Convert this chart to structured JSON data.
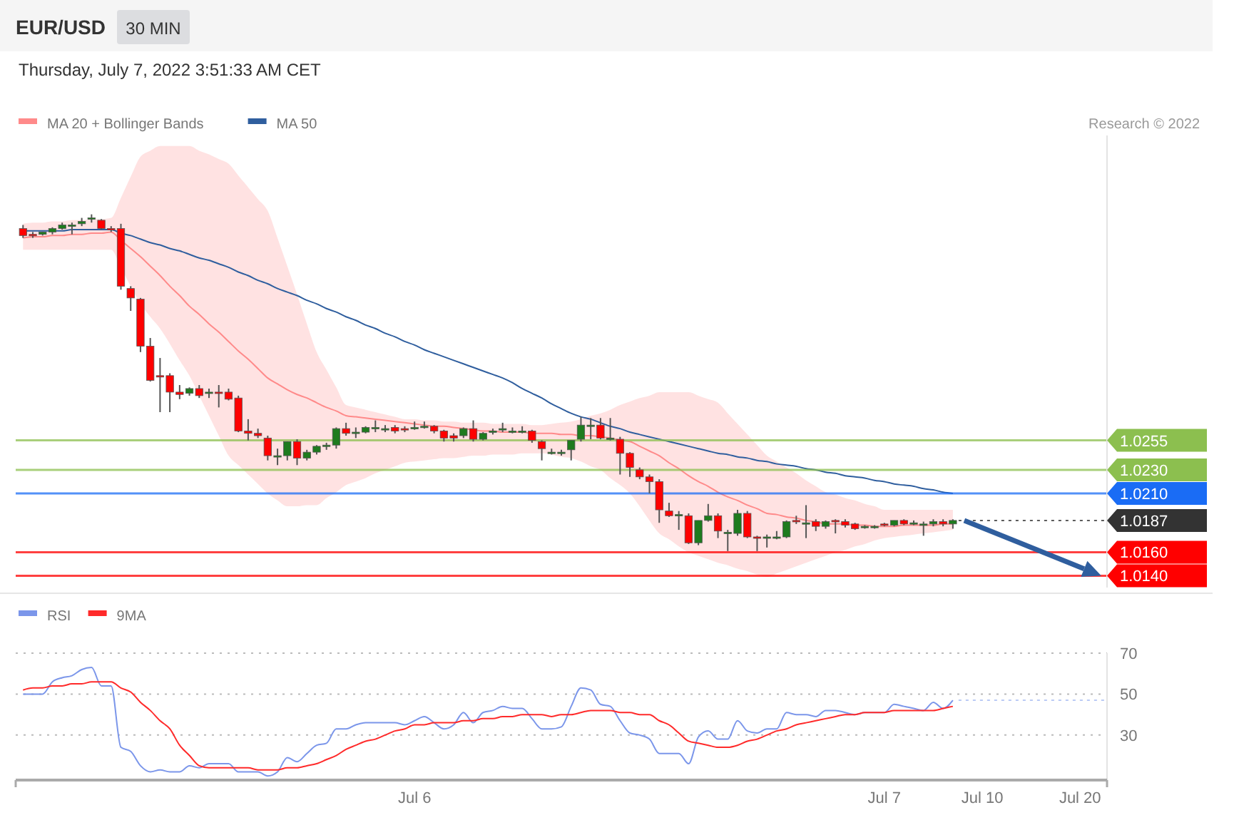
{
  "chart_data": [
    {
      "type": "candlestick",
      "title": "EUR/USD",
      "subtitle": "30 MIN",
      "annotations": [
        "Thursday, July 7, 2022 3:51:33 AM CET",
        "Research © 2022"
      ],
      "categories": [
        null,
        null,
        null,
        null,
        null,
        null,
        null,
        null,
        null,
        null,
        null,
        null,
        null,
        null,
        null,
        null,
        null,
        null,
        null,
        null,
        null,
        null,
        null,
        null,
        null,
        null,
        null,
        null,
        null,
        null,
        null,
        null,
        null,
        null,
        null,
        null,
        null,
        null,
        null,
        null,
        null,
        null,
        null,
        null,
        null,
        null,
        null,
        null,
        null,
        null,
        null,
        null,
        null,
        null,
        null,
        null,
        null,
        null,
        null,
        null,
        null,
        null,
        null,
        null,
        null,
        null,
        null,
        null,
        null,
        null,
        null,
        null,
        null,
        null,
        null,
        null,
        null,
        null,
        null,
        null,
        null,
        null,
        null,
        null,
        null,
        null,
        null,
        null,
        null,
        null,
        null,
        null,
        null,
        null,
        null,
        null,
        null,
        null,
        null,
        null,
        null,
        null,
        null,
        null,
        null,
        null,
        null,
        null,
        null,
        null,
        null
      ],
      "ohlc": [
        [
          1.0435,
          1.0438,
          1.0427,
          1.0429
        ],
        [
          1.043,
          1.0432,
          1.0427,
          1.0429
        ],
        [
          1.043,
          1.0432,
          1.0429,
          1.0432
        ],
        [
          1.0432,
          1.0436,
          1.043,
          1.0435
        ],
        [
          1.0435,
          1.044,
          1.0434,
          1.0438
        ],
        [
          1.0438,
          1.044,
          1.043,
          1.0438
        ],
        [
          1.0439,
          1.0444,
          1.0437,
          1.0441
        ],
        [
          1.0443,
          1.0447,
          1.044,
          1.0444
        ],
        [
          1.0442,
          1.0443,
          1.0434,
          1.0435
        ],
        [
          1.0435,
          1.0437,
          1.0432,
          1.0434
        ],
        [
          1.0435,
          1.0439,
          1.0383,
          1.0386
        ],
        [
          1.0384,
          1.0386,
          1.0365,
          1.0376
        ],
        [
          1.0375,
          1.0376,
          1.033,
          1.0335
        ],
        [
          1.0335,
          1.0342,
          1.0305,
          1.0306
        ],
        [
          1.031,
          1.0325,
          1.0279,
          1.0309
        ],
        [
          1.031,
          1.0312,
          1.0279,
          1.0296
        ],
        [
          1.0296,
          1.0302,
          1.029,
          1.0294
        ],
        [
          1.0295,
          1.03,
          1.0293,
          1.0299
        ],
        [
          1.0299,
          1.0302,
          1.0291,
          1.0293
        ],
        [
          1.0295,
          1.0299,
          1.0291,
          1.0296
        ],
        [
          1.0296,
          1.0302,
          1.0283,
          1.0295
        ],
        [
          1.0296,
          1.0299,
          1.0289,
          1.029
        ],
        [
          1.0291,
          1.0293,
          1.0262,
          1.0263
        ],
        [
          1.0263,
          1.0273,
          1.0255,
          1.0261
        ],
        [
          1.0261,
          1.0265,
          1.0257,
          1.0259
        ],
        [
          1.0257,
          1.0259,
          1.0238,
          1.0242
        ],
        [
          1.0242,
          1.0248,
          1.0234,
          1.0242
        ],
        [
          1.0242,
          1.0254,
          1.0238,
          1.0254
        ],
        [
          1.0254,
          1.0256,
          1.0234,
          1.024
        ],
        [
          1.024,
          1.0247,
          1.0238,
          1.0245
        ],
        [
          1.0245,
          1.0251,
          1.0243,
          1.025
        ],
        [
          1.0251,
          1.0253,
          1.0247,
          1.0251
        ],
        [
          1.0251,
          1.0266,
          1.0248,
          1.0265
        ],
        [
          1.0265,
          1.027,
          1.0259,
          1.0261
        ],
        [
          1.0262,
          1.0266,
          1.0257,
          1.0262
        ],
        [
          1.0262,
          1.0267,
          1.0261,
          1.0266
        ],
        [
          1.0266,
          1.0272,
          1.0262,
          1.0266
        ],
        [
          1.0265,
          1.0268,
          1.0262,
          1.0265
        ],
        [
          1.0266,
          1.0268,
          1.0261,
          1.0263
        ],
        [
          1.0265,
          1.0267,
          1.0262,
          1.0264
        ],
        [
          1.0266,
          1.0271,
          1.0264,
          1.0266
        ],
        [
          1.0267,
          1.0271,
          1.0265,
          1.0267
        ],
        [
          1.0267,
          1.0268,
          1.0261,
          1.0263
        ],
        [
          1.0263,
          1.0264,
          1.0254,
          1.0257
        ],
        [
          1.0259,
          1.0261,
          1.0254,
          1.0257
        ],
        [
          1.0259,
          1.0266,
          1.0257,
          1.0265
        ],
        [
          1.0265,
          1.0272,
          1.0254,
          1.0256
        ],
        [
          1.0256,
          1.0262,
          1.0255,
          1.0261
        ],
        [
          1.0262,
          1.0265,
          1.026,
          1.0263
        ],
        [
          1.0265,
          1.027,
          1.0262,
          1.0265
        ],
        [
          1.0263,
          1.0266,
          1.0261,
          1.0263
        ],
        [
          1.0263,
          1.0267,
          1.0261,
          1.0263
        ],
        [
          1.0263,
          1.0264,
          1.0253,
          1.0255
        ],
        [
          1.0254,
          1.0255,
          1.0238,
          1.0248
        ],
        [
          1.0245,
          1.0248,
          1.0243,
          1.0245
        ],
        [
          1.0245,
          1.0247,
          1.0242,
          1.0245
        ],
        [
          1.0247,
          1.0255,
          1.0238,
          1.0255
        ],
        [
          1.0256,
          1.0275,
          1.0254,
          1.0268
        ],
        [
          1.0268,
          1.0274,
          1.0256,
          1.0268
        ],
        [
          1.0268,
          1.0274,
          1.0256,
          1.0257
        ],
        [
          1.0257,
          1.0274,
          1.0255,
          1.0257
        ],
        [
          1.0256,
          1.0258,
          1.0226,
          1.0244
        ],
        [
          1.0244,
          1.0245,
          1.0224,
          1.0232
        ],
        [
          1.023,
          1.0232,
          1.0222,
          1.0224
        ],
        [
          1.0224,
          1.0226,
          1.021,
          1.022
        ],
        [
          1.022,
          1.0222,
          1.0185,
          1.0196
        ],
        [
          1.0195,
          1.0202,
          1.019,
          1.0191
        ],
        [
          1.0192,
          1.0195,
          1.0179,
          1.0192
        ],
        [
          1.0191,
          1.0193,
          1.0167,
          1.0168
        ],
        [
          1.0168,
          1.0187,
          1.0166,
          1.0187
        ],
        [
          1.0187,
          1.0201,
          1.0186,
          1.0191
        ],
        [
          1.0191,
          1.0193,
          1.0172,
          1.0178
        ],
        [
          1.0177,
          1.0179,
          1.0161,
          1.0177
        ],
        [
          1.0176,
          1.0196,
          1.0174,
          1.0193
        ],
        [
          1.0193,
          1.0195,
          1.0172,
          1.0173
        ],
        [
          1.0173,
          1.0174,
          1.0161,
          1.0172
        ],
        [
          1.0172,
          1.0175,
          1.0164,
          1.0173
        ],
        [
          1.0173,
          1.0178,
          1.0171,
          1.0173
        ],
        [
          1.0173,
          1.0187,
          1.0172,
          1.0186
        ],
        [
          1.0187,
          1.0191,
          1.0184,
          1.0186
        ],
        [
          1.0185,
          1.02,
          1.0172,
          1.0185
        ],
        [
          1.0186,
          1.0188,
          1.0178,
          1.0182
        ],
        [
          1.0182,
          1.0187,
          1.018,
          1.0186
        ],
        [
          1.0187,
          1.0188,
          1.0176,
          1.0186
        ],
        [
          1.0186,
          1.0188,
          1.0181,
          1.0183
        ],
        [
          1.0184,
          1.0185,
          1.0179,
          1.018
        ],
        [
          1.0182,
          1.0183,
          1.018,
          1.0182
        ],
        [
          1.0182,
          1.0183,
          1.018,
          1.0182
        ],
        [
          1.0184,
          1.0185,
          1.0182,
          1.0183
        ],
        [
          1.0183,
          1.0187,
          1.0182,
          1.0187
        ],
        [
          1.0187,
          1.0188,
          1.0183,
          1.0184
        ],
        [
          1.0185,
          1.0187,
          1.0183,
          1.0185
        ],
        [
          1.0184,
          1.0186,
          1.0174,
          1.0184
        ],
        [
          1.0184,
          1.0188,
          1.0182,
          1.0186
        ],
        [
          1.0186,
          1.0188,
          1.0182,
          1.0184
        ],
        [
          1.0184,
          1.0188,
          1.018,
          1.0187
        ],
        null,
        null,
        null,
        null,
        null,
        null,
        null,
        null,
        null,
        null,
        null,
        null,
        null,
        null,
        null
      ],
      "tick_labels": "y",
      "ylim": [
        1.013,
        1.0514
      ],
      "yticks": [
        1.0255,
        {
          "value": 1.023,
          "label": "1.0230"
        },
        {
          "value": 1.021,
          "label": "1.0210"
        },
        1.0187,
        {
          "value": 1.016,
          "label": "1.0160"
        },
        {
          "value": 1.014,
          "label": "1.0140"
        }
      ],
      "legend": "top left",
      "series": [
        {
          "name": "MA 20 + Bollinger Bands",
          "type": "line",
          "color": "#ff8a8a",
          "values": [
            1.0427,
            1.0428,
            1.0428,
            1.0429,
            1.0429,
            1.043,
            1.043,
            1.0431,
            1.0431,
            1.0432,
            1.0425,
            1.0418,
            1.0411,
            1.0403,
            1.0395,
            1.0386,
            1.0378,
            1.0369,
            1.0362,
            1.0354,
            1.0347,
            1.0339,
            1.0331,
            1.0324,
            1.0316,
            1.0308,
            1.0303,
            1.0298,
            1.0294,
            1.0291,
            1.0287,
            1.0283,
            1.028,
            1.0276,
            1.0275,
            1.0274,
            1.0273,
            1.0272,
            1.0271,
            1.027,
            1.0269,
            1.0268,
            1.0267,
            1.0267,
            1.0266,
            1.0265,
            1.0264,
            1.0263,
            1.0263,
            1.0262,
            1.0262,
            1.0262,
            1.0261,
            1.0261,
            1.0261,
            1.026,
            1.026,
            1.0259,
            1.0259,
            1.0258,
            1.0257,
            1.0255,
            1.0254,
            1.025,
            1.0246,
            1.0242,
            1.0236,
            1.0231,
            1.0225,
            1.022,
            1.0216,
            1.0211,
            1.0207,
            1.0204,
            1.02,
            1.0197,
            1.0193,
            1.0192,
            1.019,
            1.0189,
            1.0187,
            1.0186,
            1.0184,
            1.0184,
            1.0184,
            1.0183,
            1.0183,
            1.0182,
            1.0182,
            1.0182,
            1.0183,
            1.0183,
            1.0183,
            1.0183,
            1.0184,
            1.0184,
            null,
            null,
            null,
            null,
            null,
            null,
            null,
            null,
            null,
            null,
            null,
            null,
            null,
            null,
            null
          ],
          "lower": [
            1.0417,
            1.0417,
            1.0417,
            1.0417,
            1.0417,
            1.0417,
            1.0417,
            1.0417,
            1.0417,
            1.0417,
            1.0402,
            1.0386,
            1.0371,
            1.036,
            1.035,
            1.0337,
            1.0323,
            1.031,
            1.0293,
            1.0276,
            1.0259,
            1.0242,
            1.0234,
            1.0226,
            1.0218,
            1.021,
            1.0204,
            1.0199,
            1.0199,
            1.02,
            1.02,
            1.0206,
            1.0211,
            1.0217,
            1.022,
            1.0223,
            1.0227,
            1.023,
            1.0233,
            1.0236,
            1.0237,
            1.0238,
            1.0239,
            1.024,
            1.024,
            1.0241,
            1.0242,
            1.0242,
            1.0243,
            1.0243,
            1.0243,
            1.0244,
            1.0244,
            1.0244,
            1.0243,
            1.0241,
            1.024,
            1.0237,
            1.0233,
            1.023,
            1.0223,
            1.0217,
            1.021,
            1.0199,
            1.0187,
            1.0176,
            1.0171,
            1.0165,
            1.016,
            1.0157,
            1.0154,
            1.0151,
            1.0149,
            1.0146,
            1.0144,
            1.0141,
            1.0139,
            1.0142,
            1.0145,
            1.0148,
            1.0151,
            1.0154,
            1.0157,
            1.016,
            1.0162,
            1.0165,
            1.0167,
            1.017,
            1.0172,
            1.0173,
            1.0174,
            1.0175,
            1.0176,
            1.0177,
            1.0178,
            1.0179,
            null,
            null,
            null,
            null,
            null,
            null,
            null,
            null,
            null,
            null,
            null,
            null,
            null,
            null,
            null
          ],
          "upper": [
            1.0439,
            1.044,
            1.044,
            1.0441,
            1.0441,
            1.0442,
            1.0442,
            1.0443,
            1.0443,
            1.0444,
            1.0461,
            1.0479,
            1.0496,
            1.0501,
            1.0505,
            1.0505,
            1.0505,
            1.0505,
            1.0501,
            1.0498,
            1.0494,
            1.049,
            1.048,
            1.047,
            1.046,
            1.045,
            1.0427,
            1.0403,
            1.0379,
            1.0354,
            1.033,
            1.0315,
            1.03,
            1.0285,
            1.0283,
            1.0281,
            1.0279,
            1.0277,
            1.0275,
            1.0273,
            1.0273,
            1.0272,
            1.0272,
            1.0271,
            1.0271,
            1.027,
            1.027,
            1.027,
            1.0269,
            1.0269,
            1.0269,
            1.0269,
            1.0268,
            1.0268,
            1.0269,
            1.027,
            1.0271,
            1.0273,
            1.0276,
            1.0278,
            1.0281,
            1.0285,
            1.0288,
            1.0291,
            1.0293,
            1.0296,
            1.0296,
            1.0296,
            1.0296,
            1.0293,
            1.029,
            1.0287,
            1.0278,
            1.0269,
            1.026,
            1.0251,
            1.0242,
            1.0237,
            1.0232,
            1.0227,
            1.0221,
            1.0216,
            1.0211,
            1.0209,
            1.0206,
            1.0204,
            1.0201,
            1.0199,
            1.0196,
            1.0196,
            1.0196,
            1.0196,
            1.0196,
            1.0196,
            1.0196,
            1.0196,
            null,
            null,
            null,
            null,
            null,
            null,
            null,
            null,
            null,
            null,
            null,
            null,
            null,
            null,
            null
          ]
        },
        {
          "name": "MA 50",
          "type": "line",
          "color": "#2f5e9e",
          "values": [
            1.0433,
            1.0433,
            1.0433,
            1.0433,
            1.0433,
            1.0434,
            1.0434,
            1.0434,
            1.0434,
            1.0434,
            1.0431,
            1.0429,
            1.0426,
            1.0423,
            1.0421,
            1.0418,
            1.0416,
            1.0413,
            1.041,
            1.0408,
            1.0405,
            1.0402,
            1.0398,
            1.0395,
            1.0391,
            1.0388,
            1.0384,
            1.0381,
            1.0378,
            1.0374,
            1.0371,
            1.0367,
            1.0364,
            1.036,
            1.0357,
            1.0353,
            1.035,
            1.0346,
            1.0343,
            1.0339,
            1.0336,
            1.0332,
            1.0329,
            1.0326,
            1.0323,
            1.032,
            1.0317,
            1.0314,
            1.0311,
            1.0308,
            1.0304,
            1.0299,
            1.0295,
            1.0291,
            1.0286,
            1.0282,
            1.0278,
            1.0275,
            1.0273,
            1.027,
            1.0267,
            1.0265,
            1.0262,
            1.026,
            1.0258,
            1.0256,
            1.0254,
            1.0252,
            1.025,
            1.0248,
            1.0246,
            1.0244,
            1.0243,
            1.0241,
            1.024,
            1.0238,
            1.0237,
            1.0235,
            1.0234,
            1.0233,
            1.0231,
            1.023,
            1.0228,
            1.0227,
            1.0225,
            1.0224,
            1.0223,
            1.0221,
            1.022,
            1.0218,
            1.0217,
            1.0216,
            1.0214,
            1.0213,
            1.0211,
            1.021,
            null,
            null,
            null,
            null,
            null,
            null,
            null,
            null,
            null,
            null,
            null,
            null,
            null,
            null,
            null
          ]
        }
      ],
      "ref_lines": [
        {
          "axis": "y",
          "value": 1.0255,
          "color": "#8cbf4f",
          "line_style": "solid"
        },
        {
          "axis": "y",
          "value": 1.023,
          "color": "#8cbf4f",
          "line_style": "solid"
        },
        {
          "axis": "y",
          "value": 1.021,
          "color": "#1a6cf5",
          "line_style": "solid"
        },
        {
          "axis": "y",
          "value": 1.0187,
          "color": "#333333",
          "line_style": "dotted"
        },
        {
          "axis": "y",
          "value": 1.016,
          "color": "#ff0000",
          "line_style": "solid"
        },
        {
          "axis": "y",
          "value": 1.014,
          "color": "#ff0000",
          "line_style": "solid"
        }
      ]
    },
    {
      "type": "line",
      "categories": [
        null,
        null,
        null,
        null,
        null,
        null,
        null,
        null,
        null,
        null,
        null,
        null,
        null,
        null,
        null,
        null,
        null,
        null,
        null,
        null,
        null,
        null,
        null,
        null,
        null,
        null,
        null,
        null,
        null,
        null,
        null,
        null,
        null,
        null,
        null,
        null,
        null,
        null,
        null,
        null,
        "Jul 6",
        null,
        null,
        null,
        null,
        null,
        null,
        null,
        null,
        null,
        null,
        null,
        null,
        null,
        null,
        null,
        null,
        null,
        null,
        null,
        null,
        null,
        null,
        null,
        null,
        null,
        null,
        null,
        null,
        null,
        null,
        null,
        null,
        null,
        null,
        null,
        null,
        null,
        null,
        null,
        null,
        null,
        null,
        null,
        null,
        null,
        null,
        null,
        "Jul 7",
        null,
        null,
        null,
        null,
        null,
        null,
        null,
        null,
        null,
        "Jul 10",
        null,
        null,
        null,
        null,
        null,
        null,
        null,
        null,
        null,
        "Jul 20",
        null,
        null
      ],
      "ylim": [
        8,
        70
      ],
      "yticks": [
        30,
        50,
        70
      ],
      "grid": "y",
      "legend": "top left",
      "series": [
        {
          "name": "RSI",
          "type": "line",
          "color": "#7b96ea",
          "values": [
            50,
            50,
            50,
            56,
            58,
            59,
            62,
            63,
            54,
            54,
            24,
            22,
            15,
            12,
            13,
            12,
            12,
            15,
            14,
            16,
            16,
            16,
            12,
            12,
            12,
            10,
            12,
            19,
            17,
            21,
            25,
            26,
            33,
            33,
            35,
            36,
            36,
            36,
            36,
            35,
            37,
            39,
            36,
            33,
            35,
            41,
            36,
            41,
            42,
            44,
            43,
            43,
            38,
            33,
            33,
            34,
            44,
            53,
            52,
            45,
            44,
            37,
            31,
            30,
            28,
            21,
            21,
            21,
            16,
            29,
            32,
            28,
            28,
            37,
            32,
            31,
            33,
            33,
            41,
            40,
            40,
            39,
            42,
            42,
            41,
            40,
            41,
            41,
            41,
            45,
            44,
            43,
            42,
            46,
            43,
            47,
            null,
            null,
            null,
            null,
            null,
            null,
            null,
            null,
            null,
            null,
            null,
            null,
            null,
            null,
            null
          ]
        },
        {
          "name": "9MA",
          "type": "line",
          "color": "#ff2a2a",
          "values": [
            52,
            53,
            53,
            54,
            54,
            55,
            55,
            56,
            56,
            56,
            53,
            51,
            46,
            42,
            37,
            33,
            25,
            20,
            15,
            14,
            14,
            14,
            14,
            14,
            13,
            13,
            13,
            14,
            14,
            15,
            16,
            18,
            20,
            23,
            25,
            27,
            28,
            30,
            32,
            33,
            35,
            35,
            36,
            36,
            36,
            37,
            37,
            38,
            38,
            39,
            39,
            40,
            40,
            40,
            39,
            40,
            40,
            41,
            42,
            42,
            42,
            41,
            41,
            40,
            40,
            37,
            35,
            31,
            27,
            26,
            25,
            24,
            24,
            25,
            27,
            28,
            30,
            32,
            33,
            35,
            36,
            37,
            38,
            39,
            40,
            40,
            41,
            41,
            41,
            42,
            42,
            42,
            42,
            42,
            43,
            44,
            null,
            null,
            null,
            null,
            null,
            null,
            null,
            null,
            null,
            null,
            null,
            null,
            null,
            null,
            null
          ]
        }
      ],
      "ref_lines": [
        {
          "axis": "y",
          "value": 47,
          "color": "#a9bdf2",
          "line_style": "dotted"
        }
      ]
    }
  ]
}
